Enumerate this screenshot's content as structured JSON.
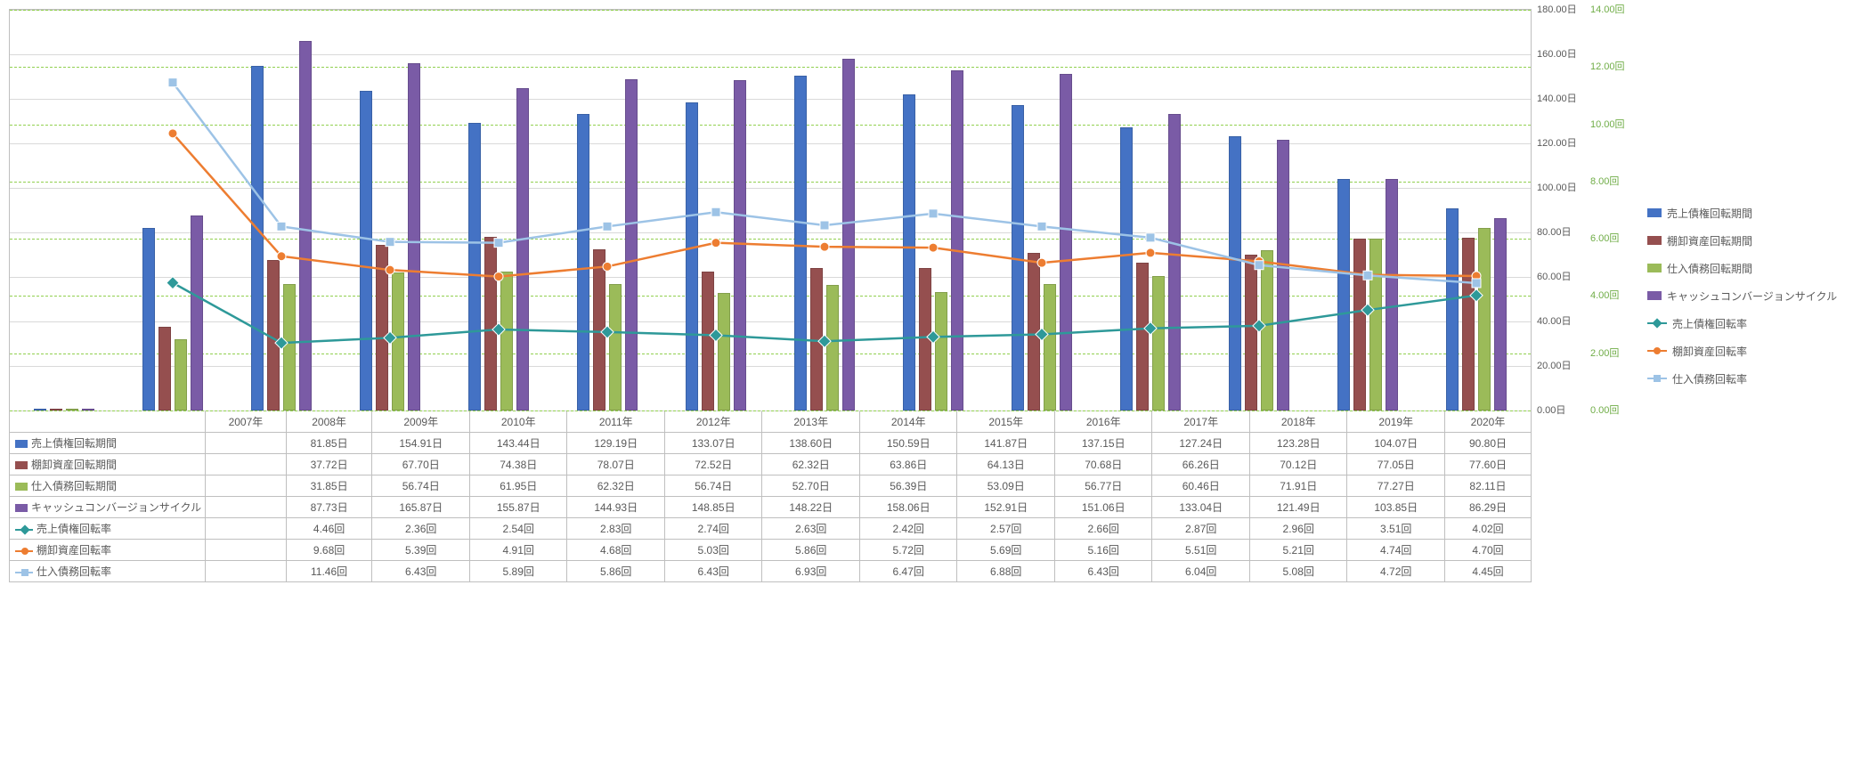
{
  "chart": {
    "years": [
      "2007年",
      "2008年",
      "2009年",
      "2010年",
      "2011年",
      "2012年",
      "2013年",
      "2014年",
      "2015年",
      "2016年",
      "2017年",
      "2018年",
      "2019年",
      "2020年"
    ],
    "left_axis": {
      "min": 0,
      "max": 180,
      "step": 20,
      "unit": "日",
      "tick_color": "#595959"
    },
    "right_axis": {
      "min": 0,
      "max": 14,
      "step": 2,
      "unit": "回",
      "tick_color": "#70ad47"
    },
    "grid_solid_color": "#d9d9d9",
    "grid_dash_color": "#92d050",
    "background_color": "#ffffff",
    "bar_series": [
      {
        "key": "sales_receivable_days",
        "label": "売上債権回転期間",
        "color": "#4472c4",
        "unit": "日",
        "values": [
          null,
          81.85,
          154.91,
          143.44,
          129.19,
          133.07,
          138.6,
          150.59,
          141.87,
          137.15,
          127.24,
          123.28,
          104.07,
          90.8
        ]
      },
      {
        "key": "inventory_days",
        "label": "棚卸資産回転期間",
        "color": "#a5a5a5",
        "legend_color": "#954f4f",
        "unit": "日",
        "values": [
          null,
          37.72,
          67.7,
          74.38,
          78.07,
          72.52,
          62.32,
          63.86,
          64.13,
          70.68,
          66.26,
          70.12,
          77.05,
          77.6
        ],
        "fill_color": "#954f4f"
      },
      {
        "key": "payable_days",
        "label": "仕入債務回転期間",
        "color": "#70ad47",
        "fill_color": "#9bbb59",
        "unit": "日",
        "values": [
          null,
          31.85,
          56.74,
          61.95,
          62.32,
          56.74,
          52.7,
          56.39,
          53.09,
          56.77,
          60.46,
          71.91,
          77.27,
          82.11
        ]
      },
      {
        "key": "ccc",
        "label": "キャッシュコンバージョンサイクル",
        "color": "#7030a0",
        "fill_color": "#7a5ba6",
        "unit": "日",
        "values": [
          null,
          87.73,
          165.87,
          155.87,
          144.93,
          148.85,
          148.22,
          158.06,
          152.91,
          151.06,
          133.04,
          121.49,
          103.85,
          86.29
        ]
      }
    ],
    "line_series": [
      {
        "key": "sales_receivable_turnover",
        "label": "売上債権回転率",
        "color": "#2e9999",
        "marker": "diamond",
        "unit": "回",
        "values": [
          null,
          4.46,
          2.36,
          2.54,
          2.83,
          2.74,
          2.63,
          2.42,
          2.57,
          2.66,
          2.87,
          2.96,
          3.51,
          4.02
        ]
      },
      {
        "key": "inventory_turnover",
        "label": "棚卸資産回転率",
        "color": "#ed7d31",
        "marker": "circle",
        "unit": "回",
        "values": [
          null,
          9.68,
          5.39,
          4.91,
          4.68,
          5.03,
          5.86,
          5.72,
          5.69,
          5.16,
          5.51,
          5.21,
          4.74,
          4.7
        ]
      },
      {
        "key": "payable_turnover",
        "label": "仕入債務回転率",
        "color": "#9dc3e6",
        "marker": "square",
        "unit": "回",
        "values": [
          null,
          11.46,
          6.43,
          5.89,
          5.86,
          6.43,
          6.93,
          6.47,
          6.88,
          6.43,
          6.04,
          5.08,
          4.72,
          4.45
        ]
      }
    ]
  }
}
